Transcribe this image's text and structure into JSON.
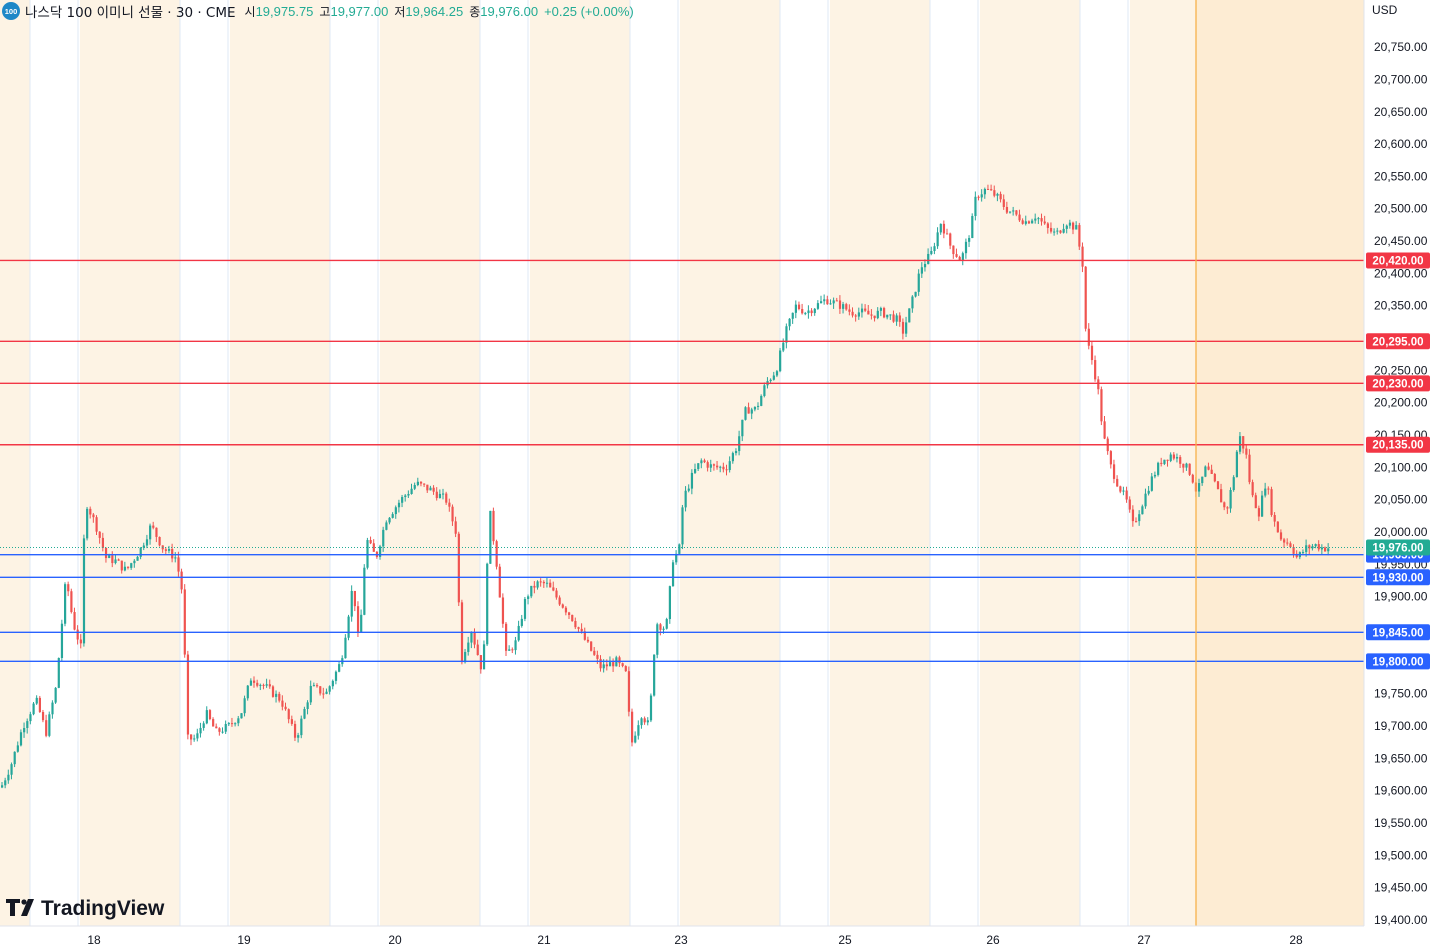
{
  "header": {
    "badge": "100",
    "symbol": "나스닥 100 이미니 선물 · 30 · CME",
    "open_label": "시",
    "open_value": "19,975.75",
    "high_label": "고",
    "high_value": "19,977.00",
    "low_label": "저",
    "low_value": "19,964.25",
    "close_label": "종",
    "close_value": "19,976.00",
    "change": "+0.25 (+0.00%)"
  },
  "currency": "USD",
  "logo_text": "TradingView",
  "colors": {
    "up": "#26a69a",
    "down": "#ef5350",
    "resistance": "#f23645",
    "support": "#2962ff",
    "session_shade": "#fdf3e4",
    "current_price": "#22ab94",
    "cursor_line": "#f7b24a"
  },
  "chart_data": {
    "type": "candlestick",
    "y_axis": {
      "min": 19400,
      "max": 20750,
      "step": 50,
      "ticks": [
        "19,400.00",
        "19,450.00",
        "19,500.00",
        "19,550.00",
        "19,600.00",
        "19,650.00",
        "19,700.00",
        "19,750.00",
        "19,800.00",
        "19,850.00",
        "19,900.00",
        "19,950.00",
        "20,000.00",
        "20,050.00",
        "20,100.00",
        "20,150.00",
        "20,200.00",
        "20,250.00",
        "20,300.00",
        "20,350.00",
        "20,400.00",
        "20,450.00",
        "20,500.00",
        "20,550.00",
        "20,600.00",
        "20,650.00",
        "20,700.00",
        "20,750.00"
      ]
    },
    "x_axis": {
      "labels": [
        "18",
        "19",
        "20",
        "21",
        "23",
        "25",
        "26",
        "27",
        "28"
      ]
    },
    "resistance_levels": [
      {
        "value": 20420,
        "label": "20,420.00"
      },
      {
        "value": 20295,
        "label": "20,295.00"
      },
      {
        "value": 20230,
        "label": "20,230.00"
      },
      {
        "value": 20135,
        "label": "20,135.00"
      }
    ],
    "support_levels": [
      {
        "value": 19965,
        "label": "19,965.00"
      },
      {
        "value": 19930,
        "label": "19,930.00"
      },
      {
        "value": 19845,
        "label": "19,845.00"
      },
      {
        "value": 19800,
        "label": "19,800.00"
      }
    ],
    "current_price": {
      "value": 19976,
      "label": "19,976.00"
    },
    "price_path": [
      [
        0,
        19605
      ],
      [
        10,
        19640
      ],
      [
        22,
        19700
      ],
      [
        35,
        19740
      ],
      [
        45,
        19690
      ],
      [
        55,
        19760
      ],
      [
        65,
        19930
      ],
      [
        72,
        19860
      ],
      [
        80,
        19820
      ],
      [
        84,
        20050
      ],
      [
        95,
        20010
      ],
      [
        105,
        19960
      ],
      [
        115,
        19955
      ],
      [
        125,
        19940
      ],
      [
        140,
        19975
      ],
      [
        150,
        20010
      ],
      [
        162,
        19975
      ],
      [
        175,
        19960
      ],
      [
        182,
        19900
      ],
      [
        186,
        19680
      ],
      [
        195,
        19680
      ],
      [
        205,
        19720
      ],
      [
        215,
        19690
      ],
      [
        228,
        19700
      ],
      [
        240,
        19720
      ],
      [
        250,
        19775
      ],
      [
        265,
        19760
      ],
      [
        280,
        19740
      ],
      [
        295,
        19680
      ],
      [
        310,
        19760
      ],
      [
        325,
        19750
      ],
      [
        340,
        19800
      ],
      [
        352,
        19920
      ],
      [
        358,
        19820
      ],
      [
        365,
        19990
      ],
      [
        375,
        19960
      ],
      [
        385,
        20020
      ],
      [
        400,
        20050
      ],
      [
        415,
        20075
      ],
      [
        430,
        20065
      ],
      [
        445,
        20050
      ],
      [
        455,
        20000
      ],
      [
        460,
        19800
      ],
      [
        470,
        19850
      ],
      [
        482,
        19780
      ],
      [
        488,
        20040
      ],
      [
        495,
        19960
      ],
      [
        505,
        19810
      ],
      [
        515,
        19830
      ],
      [
        525,
        19900
      ],
      [
        535,
        19920
      ],
      [
        545,
        19920
      ],
      [
        555,
        19900
      ],
      [
        570,
        19870
      ],
      [
        585,
        19830
      ],
      [
        600,
        19790
      ],
      [
        615,
        19800
      ],
      [
        625,
        19780
      ],
      [
        630,
        19670
      ],
      [
        640,
        19720
      ],
      [
        648,
        19700
      ],
      [
        655,
        19860
      ],
      [
        665,
        19850
      ],
      [
        672,
        19960
      ],
      [
        678,
        19970
      ],
      [
        682,
        20050
      ],
      [
        692,
        20090
      ],
      [
        700,
        20110
      ],
      [
        712,
        20100
      ],
      [
        725,
        20100
      ],
      [
        735,
        20130
      ],
      [
        745,
        20190
      ],
      [
        755,
        20190
      ],
      [
        765,
        20230
      ],
      [
        775,
        20250
      ],
      [
        785,
        20310
      ],
      [
        795,
        20350
      ],
      [
        805,
        20340
      ],
      [
        815,
        20350
      ],
      [
        825,
        20360
      ],
      [
        840,
        20350
      ],
      [
        850,
        20340
      ],
      [
        860,
        20340
      ],
      [
        870,
        20335
      ],
      [
        880,
        20340
      ],
      [
        895,
        20330
      ],
      [
        902,
        20310
      ],
      [
        910,
        20350
      ],
      [
        920,
        20410
      ],
      [
        930,
        20430
      ],
      [
        940,
        20480
      ],
      [
        950,
        20440
      ],
      [
        960,
        20420
      ],
      [
        970,
        20470
      ],
      [
        975,
        20520
      ],
      [
        985,
        20530
      ],
      [
        995,
        20520
      ],
      [
        1005,
        20500
      ],
      [
        1015,
        20490
      ],
      [
        1025,
        20480
      ],
      [
        1035,
        20490
      ],
      [
        1045,
        20470
      ],
      [
        1055,
        20460
      ],
      [
        1065,
        20480
      ],
      [
        1075,
        20470
      ],
      [
        1082,
        20410
      ],
      [
        1085,
        20300
      ],
      [
        1092,
        20260
      ],
      [
        1098,
        20210
      ],
      [
        1102,
        20150
      ],
      [
        1110,
        20100
      ],
      [
        1118,
        20070
      ],
      [
        1125,
        20050
      ],
      [
        1132,
        20010
      ],
      [
        1140,
        20040
      ],
      [
        1150,
        20080
      ],
      [
        1160,
        20110
      ],
      [
        1170,
        20120
      ],
      [
        1180,
        20110
      ],
      [
        1190,
        20090
      ],
      [
        1196,
        20060
      ],
      [
        1205,
        20100
      ],
      [
        1215,
        20070
      ],
      [
        1225,
        20030
      ],
      [
        1232,
        20080
      ],
      [
        1238,
        20150
      ],
      [
        1245,
        20120
      ],
      [
        1250,
        20060
      ],
      [
        1258,
        20030
      ],
      [
        1265,
        20080
      ],
      [
        1272,
        20020
      ],
      [
        1280,
        19990
      ],
      [
        1290,
        19980
      ],
      [
        1296,
        19960
      ],
      [
        1305,
        19975
      ],
      [
        1315,
        19980
      ],
      [
        1322,
        19975
      ],
      [
        1328,
        19976
      ]
    ]
  }
}
